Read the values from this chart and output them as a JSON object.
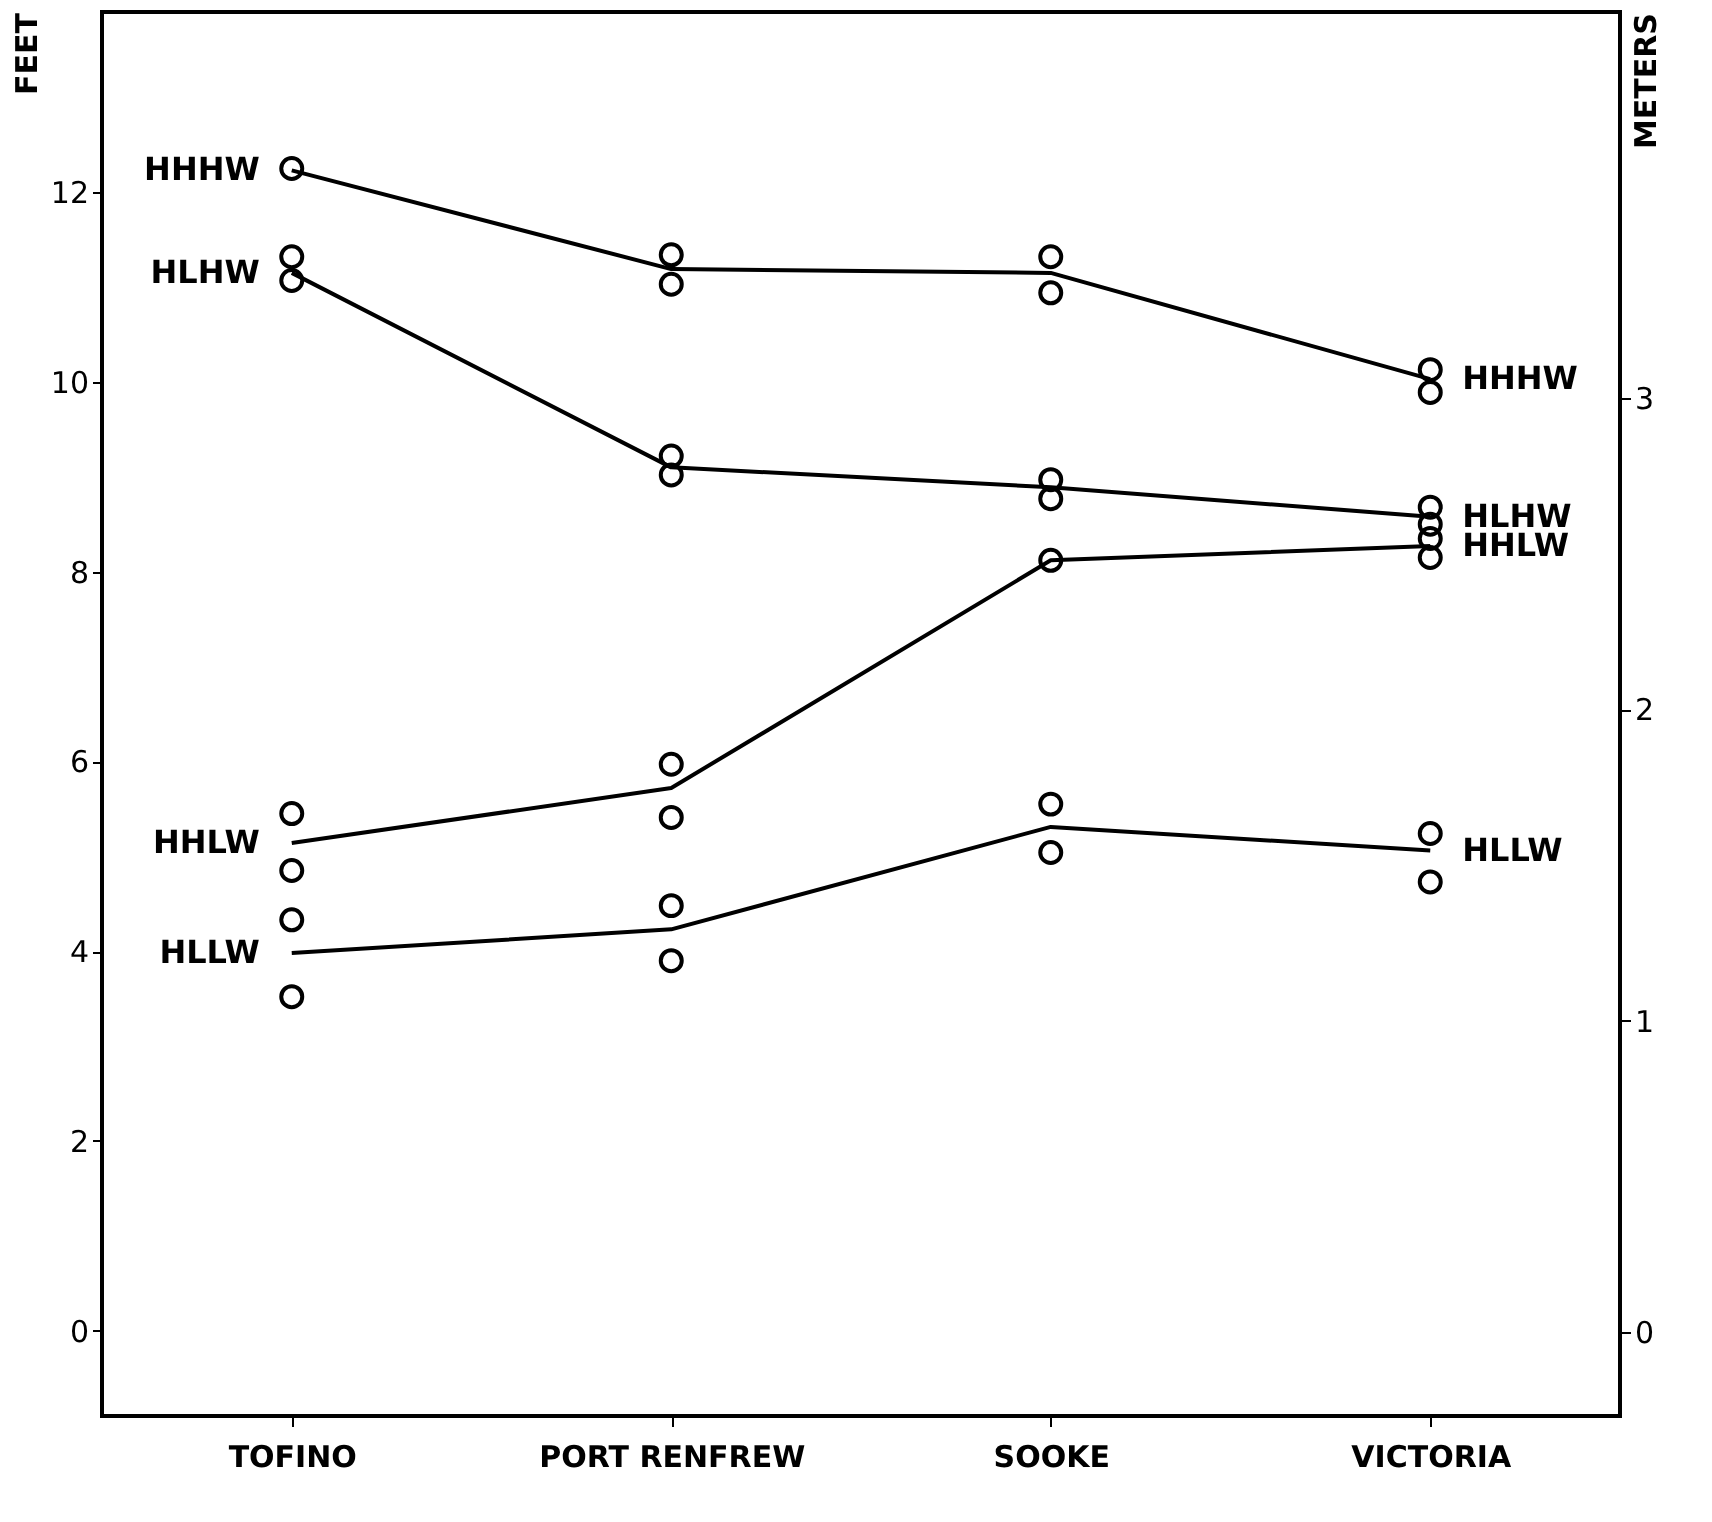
{
  "chart_data": {
    "type": "line",
    "ylabel": "FEET",
    "y2label": "METERS",
    "categories": [
      "TOFINO",
      "PORT RENFREW",
      "SOOKE",
      "VICTORIA"
    ],
    "ylim": [
      -0.9,
      13.9
    ],
    "yticks": [
      0,
      2,
      4,
      6,
      8,
      10,
      12
    ],
    "y2lim": [
      -0.27,
      4.24
    ],
    "y2ticks": [
      0,
      1,
      2,
      3
    ],
    "grid": false,
    "series": [
      {
        "name": "HHHW",
        "color": "#000000",
        "marker": "none",
        "values": [
          12.23,
          11.19,
          11.15,
          10.03
        ]
      },
      {
        "name": "HLHW",
        "color": "#000000",
        "marker": "none",
        "values": [
          11.15,
          9.1,
          8.89,
          8.58
        ]
      },
      {
        "name": "HHLW",
        "color": "#000000",
        "marker": "none",
        "values": [
          5.14,
          5.72,
          8.12,
          8.27
        ]
      },
      {
        "name": "HLLW",
        "color": "#000000",
        "marker": "none",
        "values": [
          3.98,
          4.23,
          5.31,
          5.06
        ]
      },
      {
        "type": "scatter",
        "color": "#000000",
        "marker": "circle",
        "x": [
          "TOFINO",
          "PORT RENFREW",
          "PORT RENFREW",
          "SOOKE",
          "SOOKE",
          "VICTORIA",
          "VICTORIA"
        ],
        "values": [
          12.25,
          11.34,
          11.03,
          11.32,
          10.94,
          10.13,
          9.89
        ]
      },
      {
        "type": "scatter",
        "color": "#000000",
        "marker": "circle",
        "x": [
          "TOFINO",
          "TOFINO",
          "PORT RENFREW",
          "PORT RENFREW",
          "SOOKE",
          "SOOKE",
          "VICTORIA",
          "VICTORIA"
        ],
        "values": [
          11.32,
          11.07,
          9.22,
          9.02,
          8.97,
          8.77,
          8.68,
          8.5
        ]
      },
      {
        "type": "scatter",
        "color": "#000000",
        "marker": "circle",
        "x": [
          "TOFINO",
          "TOFINO",
          "PORT RENFREW",
          "PORT RENFREW",
          "SOOKE",
          "VICTORIA",
          "VICTORIA"
        ],
        "values": [
          5.45,
          4.85,
          5.97,
          5.41,
          8.12,
          8.35,
          8.15
        ]
      },
      {
        "type": "scatter",
        "color": "#000000",
        "marker": "circle",
        "x": [
          "TOFINO",
          "TOFINO",
          "PORT RENFREW",
          "PORT RENFREW",
          "SOOKE",
          "SOOKE",
          "VICTORIA",
          "VICTORIA"
        ],
        "values": [
          4.33,
          3.52,
          4.48,
          3.9,
          5.55,
          5.04,
          5.24,
          4.73
        ]
      }
    ]
  }
}
